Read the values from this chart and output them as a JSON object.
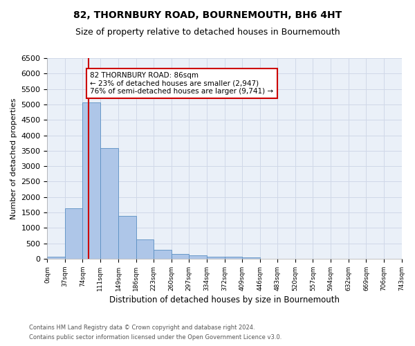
{
  "title": "82, THORNBURY ROAD, BOURNEMOUTH, BH6 4HT",
  "subtitle": "Size of property relative to detached houses in Bournemouth",
  "xlabel": "Distribution of detached houses by size in Bournemouth",
  "ylabel": "Number of detached properties",
  "bin_edges": [
    0,
    37,
    74,
    111,
    149,
    186,
    223,
    260,
    297,
    334,
    372,
    409,
    446,
    483,
    520,
    557,
    594,
    632,
    669,
    706,
    743
  ],
  "bar_heights": [
    75,
    1625,
    5075,
    3575,
    1400,
    625,
    300,
    150,
    100,
    75,
    75,
    50,
    0,
    0,
    0,
    0,
    0,
    0,
    0,
    0
  ],
  "bar_color": "#aec6e8",
  "bar_edgecolor": "#5a8fc2",
  "grid_color": "#d0d8e8",
  "property_size": 86,
  "vline_color": "#cc0000",
  "annotation_text": "82 THORNBURY ROAD: 86sqm\n← 23% of detached houses are smaller (2,947)\n76% of semi-detached houses are larger (9,741) →",
  "annotation_box_color": "#cc0000",
  "ylim": [
    0,
    6500
  ],
  "yticks": [
    0,
    500,
    1000,
    1500,
    2000,
    2500,
    3000,
    3500,
    4000,
    4500,
    5000,
    5500,
    6000,
    6500
  ],
  "tick_labels": [
    "0sqm",
    "37sqm",
    "74sqm",
    "111sqm",
    "149sqm",
    "186sqm",
    "223sqm",
    "260sqm",
    "297sqm",
    "334sqm",
    "372sqm",
    "409sqm",
    "446sqm",
    "483sqm",
    "520sqm",
    "557sqm",
    "594sqm",
    "632sqm",
    "669sqm",
    "706sqm",
    "743sqm"
  ],
  "footer_line1": "Contains HM Land Registry data © Crown copyright and database right 2024.",
  "footer_line2": "Contains public sector information licensed under the Open Government Licence v3.0.",
  "background_color": "#ffffff",
  "plot_bg_color": "#eaf0f8",
  "title_fontsize": 10,
  "subtitle_fontsize": 9,
  "annotation_fontsize": 7.5
}
